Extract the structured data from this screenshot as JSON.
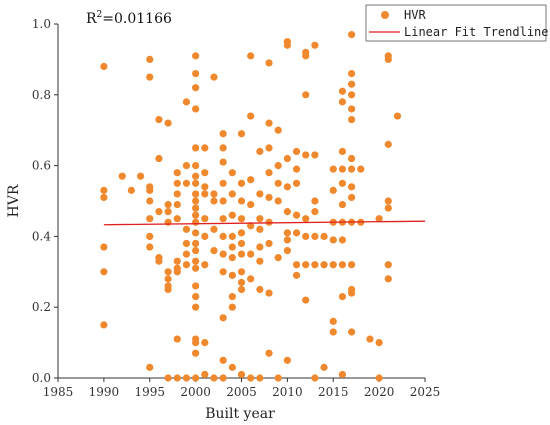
{
  "chart_data": {
    "type": "scatter",
    "xlabel": "Built year",
    "ylabel": "HVR",
    "xlim": [
      1985,
      2025
    ],
    "ylim": [
      0,
      1.0
    ],
    "xticks": [
      1985,
      1990,
      1995,
      2000,
      2005,
      2010,
      2015,
      2020,
      2025
    ],
    "yticks": [
      0.0,
      0.2,
      0.4,
      0.6,
      0.8,
      1.0
    ],
    "xtick_labels": [
      "1985",
      "1990",
      "1995",
      "2000",
      "2005",
      "2010",
      "2015",
      "2020",
      "2025"
    ],
    "ytick_labels": [
      "0.0",
      "0.2",
      "0.4",
      "0.6",
      "0.8",
      "1.0"
    ],
    "annotation": {
      "prefix": "R",
      "sup": "2",
      "suffix": "=0.01166"
    },
    "legend": {
      "position": "top-right",
      "entries": [
        "HVR",
        "Linear Fit Trendline"
      ]
    },
    "colors": {
      "points": "#F0882E",
      "trendline": "#E02020",
      "axis": "#333333"
    },
    "series": [
      {
        "name": "HVR",
        "kind": "scatter",
        "points": [
          [
            1990,
            0.88
          ],
          [
            1990,
            0.53
          ],
          [
            1990,
            0.51
          ],
          [
            1990,
            0.37
          ],
          [
            1990,
            0.3
          ],
          [
            1990,
            0.15
          ],
          [
            1992,
            0.57
          ],
          [
            1993,
            0.53
          ],
          [
            1994,
            0.57
          ],
          [
            1995,
            0.9
          ],
          [
            1995,
            0.85
          ],
          [
            1995,
            0.54
          ],
          [
            1995,
            0.53
          ],
          [
            1995,
            0.5
          ],
          [
            1995,
            0.45
          ],
          [
            1995,
            0.4
          ],
          [
            1995,
            0.37
          ],
          [
            1995,
            0.03
          ],
          [
            1996,
            0.73
          ],
          [
            1996,
            0.62
          ],
          [
            1996,
            0.47
          ],
          [
            1996,
            0.34
          ],
          [
            1996,
            0.33
          ],
          [
            1997,
            0.72
          ],
          [
            1997,
            0.49
          ],
          [
            1997,
            0.47
          ],
          [
            1997,
            0.44
          ],
          [
            1997,
            0.3
          ],
          [
            1997,
            0.28
          ],
          [
            1997,
            0.26
          ],
          [
            1997,
            0.25
          ],
          [
            1997,
            0.0
          ],
          [
            1998,
            0.58
          ],
          [
            1998,
            0.55
          ],
          [
            1998,
            0.52
          ],
          [
            1998,
            0.49
          ],
          [
            1998,
            0.45
          ],
          [
            1998,
            0.33
          ],
          [
            1998,
            0.31
          ],
          [
            1998,
            0.3
          ],
          [
            1998,
            0.11
          ],
          [
            1998,
            0.0
          ],
          [
            1999,
            0.78
          ],
          [
            1999,
            0.6
          ],
          [
            1999,
            0.55
          ],
          [
            1999,
            0.42
          ],
          [
            1999,
            0.38
          ],
          [
            1999,
            0.35
          ],
          [
            1999,
            0.32
          ],
          [
            1999,
            0.0
          ],
          [
            2000,
            0.91
          ],
          [
            2000,
            0.86
          ],
          [
            2000,
            0.82
          ],
          [
            2000,
            0.76
          ],
          [
            2000,
            0.65
          ],
          [
            2000,
            0.6
          ],
          [
            2000,
            0.57
          ],
          [
            2000,
            0.55
          ],
          [
            2000,
            0.52
          ],
          [
            2000,
            0.5
          ],
          [
            2000,
            0.48
          ],
          [
            2000,
            0.46
          ],
          [
            2000,
            0.44
          ],
          [
            2000,
            0.41
          ],
          [
            2000,
            0.38
          ],
          [
            2000,
            0.36
          ],
          [
            2000,
            0.33
          ],
          [
            2000,
            0.31
          ],
          [
            2000,
            0.26
          ],
          [
            2000,
            0.23
          ],
          [
            2000,
            0.2
          ],
          [
            2000,
            0.11
          ],
          [
            2000,
            0.1
          ],
          [
            2000,
            0.07
          ],
          [
            2000,
            0.0
          ],
          [
            2001,
            0.65
          ],
          [
            2001,
            0.58
          ],
          [
            2001,
            0.54
          ],
          [
            2001,
            0.52
          ],
          [
            2001,
            0.45
          ],
          [
            2001,
            0.4
          ],
          [
            2001,
            0.32
          ],
          [
            2001,
            0.1
          ],
          [
            2001,
            0.01
          ],
          [
            2002,
            0.85
          ],
          [
            2002,
            0.52
          ],
          [
            2002,
            0.5
          ],
          [
            2002,
            0.42
          ],
          [
            2002,
            0.36
          ],
          [
            2002,
            0.0
          ],
          [
            2003,
            0.69
          ],
          [
            2003,
            0.65
          ],
          [
            2003,
            0.61
          ],
          [
            2003,
            0.55
          ],
          [
            2003,
            0.5
          ],
          [
            2003,
            0.45
          ],
          [
            2003,
            0.4
          ],
          [
            2003,
            0.35
          ],
          [
            2003,
            0.3
          ],
          [
            2003,
            0.17
          ],
          [
            2003,
            0.05
          ],
          [
            2003,
            0.0
          ],
          [
            2004,
            0.58
          ],
          [
            2004,
            0.52
          ],
          [
            2004,
            0.46
          ],
          [
            2004,
            0.4
          ],
          [
            2004,
            0.37
          ],
          [
            2004,
            0.34
          ],
          [
            2004,
            0.29
          ],
          [
            2004,
            0.23
          ],
          [
            2004,
            0.2
          ],
          [
            2004,
            0.03
          ],
          [
            2005,
            0.69
          ],
          [
            2005,
            0.55
          ],
          [
            2005,
            0.5
          ],
          [
            2005,
            0.45
          ],
          [
            2005,
            0.41
          ],
          [
            2005,
            0.38
          ],
          [
            2005,
            0.35
          ],
          [
            2005,
            0.3
          ],
          [
            2005,
            0.27
          ],
          [
            2005,
            0.25
          ],
          [
            2005,
            0.01
          ],
          [
            2006,
            0.91
          ],
          [
            2006,
            0.74
          ],
          [
            2006,
            0.56
          ],
          [
            2006,
            0.49
          ],
          [
            2006,
            0.43
          ],
          [
            2006,
            0.35
          ],
          [
            2006,
            0.28
          ],
          [
            2006,
            0.0
          ],
          [
            2007,
            0.64
          ],
          [
            2007,
            0.52
          ],
          [
            2007,
            0.45
          ],
          [
            2007,
            0.42
          ],
          [
            2007,
            0.37
          ],
          [
            2007,
            0.33
          ],
          [
            2007,
            0.25
          ],
          [
            2007,
            0.0
          ],
          [
            2008,
            0.89
          ],
          [
            2008,
            0.72
          ],
          [
            2008,
            0.65
          ],
          [
            2008,
            0.58
          ],
          [
            2008,
            0.51
          ],
          [
            2008,
            0.44
          ],
          [
            2008,
            0.38
          ],
          [
            2008,
            0.24
          ],
          [
            2008,
            0.07
          ],
          [
            2009,
            0.7
          ],
          [
            2009,
            0.6
          ],
          [
            2009,
            0.55
          ],
          [
            2009,
            0.5
          ],
          [
            2009,
            0.34
          ],
          [
            2009,
            0.0
          ],
          [
            2010,
            0.95
          ],
          [
            2010,
            0.94
          ],
          [
            2010,
            0.62
          ],
          [
            2010,
            0.54
          ],
          [
            2010,
            0.47
          ],
          [
            2010,
            0.41
          ],
          [
            2010,
            0.39
          ],
          [
            2010,
            0.36
          ],
          [
            2010,
            0.05
          ],
          [
            2011,
            0.64
          ],
          [
            2011,
            0.59
          ],
          [
            2011,
            0.55
          ],
          [
            2011,
            0.46
          ],
          [
            2011,
            0.41
          ],
          [
            2011,
            0.32
          ],
          [
            2011,
            0.29
          ],
          [
            2012,
            0.92
          ],
          [
            2012,
            0.91
          ],
          [
            2012,
            0.8
          ],
          [
            2012,
            0.63
          ],
          [
            2012,
            0.45
          ],
          [
            2012,
            0.4
          ],
          [
            2012,
            0.32
          ],
          [
            2012,
            0.22
          ],
          [
            2013,
            0.94
          ],
          [
            2013,
            0.63
          ],
          [
            2013,
            0.5
          ],
          [
            2013,
            0.47
          ],
          [
            2013,
            0.4
          ],
          [
            2013,
            0.32
          ],
          [
            2013,
            0.0
          ],
          [
            2014,
            0.4
          ],
          [
            2014,
            0.32
          ],
          [
            2014,
            0.03
          ],
          [
            2015,
            0.59
          ],
          [
            2015,
            0.53
          ],
          [
            2015,
            0.44
          ],
          [
            2015,
            0.39
          ],
          [
            2015,
            0.32
          ],
          [
            2015,
            0.16
          ],
          [
            2015,
            0.13
          ],
          [
            2016,
            0.81
          ],
          [
            2016,
            0.78
          ],
          [
            2016,
            0.64
          ],
          [
            2016,
            0.59
          ],
          [
            2016,
            0.55
          ],
          [
            2016,
            0.49
          ],
          [
            2016,
            0.44
          ],
          [
            2016,
            0.39
          ],
          [
            2016,
            0.32
          ],
          [
            2016,
            0.23
          ],
          [
            2016,
            0.01
          ],
          [
            2017,
            0.97
          ],
          [
            2017,
            0.86
          ],
          [
            2017,
            0.83
          ],
          [
            2017,
            0.8
          ],
          [
            2017,
            0.76
          ],
          [
            2017,
            0.73
          ],
          [
            2017,
            0.62
          ],
          [
            2017,
            0.59
          ],
          [
            2017,
            0.54
          ],
          [
            2017,
            0.51
          ],
          [
            2017,
            0.44
          ],
          [
            2017,
            0.32
          ],
          [
            2017,
            0.25
          ],
          [
            2017,
            0.24
          ],
          [
            2017,
            0.13
          ],
          [
            2018,
            0.59
          ],
          [
            2018,
            0.44
          ],
          [
            2019,
            0.11
          ],
          [
            2020,
            0.45
          ],
          [
            2020,
            0.1
          ],
          [
            2020,
            0.0
          ],
          [
            2021,
            0.91
          ],
          [
            2021,
            0.9
          ],
          [
            2021,
            0.66
          ],
          [
            2021,
            0.5
          ],
          [
            2021,
            0.48
          ],
          [
            2021,
            0.32
          ],
          [
            2021,
            0.28
          ],
          [
            2022,
            0.74
          ]
        ]
      },
      {
        "name": "Linear Fit Trendline",
        "kind": "line",
        "points": [
          [
            1990,
            0.433
          ],
          [
            2025,
            0.443
          ]
        ]
      }
    ]
  }
}
